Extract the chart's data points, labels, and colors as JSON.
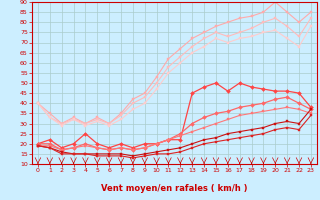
{
  "xlabel": "Vent moyen/en rafales ( km/h )",
  "bg_color": "#cceeff",
  "grid_color": "#aacccc",
  "xlim": [
    -0.5,
    23.5
  ],
  "ylim": [
    10,
    90
  ],
  "yticks": [
    10,
    15,
    20,
    25,
    30,
    35,
    40,
    45,
    50,
    55,
    60,
    65,
    70,
    75,
    80,
    85,
    90
  ],
  "xticks": [
    0,
    1,
    2,
    3,
    4,
    5,
    6,
    7,
    8,
    9,
    10,
    11,
    12,
    13,
    14,
    15,
    16,
    17,
    18,
    19,
    20,
    21,
    22,
    23
  ],
  "series": [
    {
      "color": "#ffaaaa",
      "lw": 0.8,
      "marker": "s",
      "ms": 2,
      "data": [
        [
          0,
          40
        ],
        [
          1,
          35
        ],
        [
          2,
          30
        ],
        [
          3,
          33
        ],
        [
          4,
          30
        ],
        [
          5,
          33
        ],
        [
          6,
          30
        ],
        [
          7,
          35
        ],
        [
          8,
          42
        ],
        [
          9,
          45
        ],
        [
          10,
          53
        ],
        [
          11,
          62
        ],
        [
          12,
          67
        ],
        [
          13,
          72
        ],
        [
          14,
          75
        ],
        [
          15,
          78
        ],
        [
          16,
          80
        ],
        [
          17,
          82
        ],
        [
          18,
          83
        ],
        [
          19,
          85
        ],
        [
          20,
          90
        ],
        [
          21,
          85
        ],
        [
          22,
          80
        ],
        [
          23,
          85
        ]
      ]
    },
    {
      "color": "#ffbbbb",
      "lw": 0.8,
      "marker": "s",
      "ms": 2,
      "data": [
        [
          0,
          40
        ],
        [
          1,
          33
        ],
        [
          2,
          30
        ],
        [
          3,
          32
        ],
        [
          4,
          30
        ],
        [
          5,
          32
        ],
        [
          6,
          30
        ],
        [
          7,
          34
        ],
        [
          8,
          40
        ],
        [
          9,
          43
        ],
        [
          10,
          50
        ],
        [
          11,
          58
        ],
        [
          12,
          63
        ],
        [
          13,
          68
        ],
        [
          14,
          72
        ],
        [
          15,
          75
        ],
        [
          16,
          73
        ],
        [
          17,
          75
        ],
        [
          18,
          77
        ],
        [
          19,
          80
        ],
        [
          20,
          82
        ],
        [
          21,
          78
        ],
        [
          22,
          73
        ],
        [
          23,
          82
        ]
      ]
    },
    {
      "color": "#ffcccc",
      "lw": 0.8,
      "marker": "s",
      "ms": 2,
      "data": [
        [
          0,
          40
        ],
        [
          1,
          33
        ],
        [
          2,
          29
        ],
        [
          3,
          32
        ],
        [
          4,
          29
        ],
        [
          5,
          31
        ],
        [
          6,
          29
        ],
        [
          7,
          32
        ],
        [
          8,
          37
        ],
        [
          9,
          40
        ],
        [
          10,
          47
        ],
        [
          11,
          55
        ],
        [
          12,
          60
        ],
        [
          13,
          65
        ],
        [
          14,
          68
        ],
        [
          15,
          72
        ],
        [
          16,
          70
        ],
        [
          17,
          72
        ],
        [
          18,
          73
        ],
        [
          19,
          75
        ],
        [
          20,
          76
        ],
        [
          21,
          72
        ],
        [
          22,
          68
        ],
        [
          23,
          78
        ]
      ]
    },
    {
      "color": "#ff4444",
      "lw": 0.9,
      "marker": "D",
      "ms": 2,
      "data": [
        [
          0,
          20
        ],
        [
          1,
          22
        ],
        [
          2,
          18
        ],
        [
          3,
          20
        ],
        [
          4,
          25
        ],
        [
          5,
          20
        ],
        [
          6,
          18
        ],
        [
          7,
          20
        ],
        [
          8,
          18
        ],
        [
          9,
          20
        ],
        [
          10,
          20
        ],
        [
          11,
          22
        ],
        [
          12,
          22
        ],
        [
          13,
          45
        ],
        [
          14,
          48
        ],
        [
          15,
          50
        ],
        [
          16,
          46
        ],
        [
          17,
          50
        ],
        [
          18,
          48
        ],
        [
          19,
          47
        ],
        [
          20,
          46
        ],
        [
          21,
          46
        ],
        [
          22,
          45
        ],
        [
          23,
          38
        ]
      ]
    },
    {
      "color": "#ff6666",
      "lw": 0.9,
      "marker": "D",
      "ms": 2,
      "data": [
        [
          0,
          20
        ],
        [
          1,
          20
        ],
        [
          2,
          17
        ],
        [
          3,
          18
        ],
        [
          4,
          20
        ],
        [
          5,
          18
        ],
        [
          6,
          17
        ],
        [
          7,
          18
        ],
        [
          8,
          17
        ],
        [
          9,
          18
        ],
        [
          10,
          20
        ],
        [
          11,
          22
        ],
        [
          12,
          25
        ],
        [
          13,
          30
        ],
        [
          14,
          33
        ],
        [
          15,
          35
        ],
        [
          16,
          36
        ],
        [
          17,
          38
        ],
        [
          18,
          39
        ],
        [
          19,
          40
        ],
        [
          20,
          42
        ],
        [
          21,
          43
        ],
        [
          22,
          40
        ],
        [
          23,
          37
        ]
      ]
    },
    {
      "color": "#ff7777",
      "lw": 0.8,
      "marker": "s",
      "ms": 2,
      "data": [
        [
          0,
          19
        ],
        [
          1,
          19
        ],
        [
          2,
          17
        ],
        [
          3,
          18
        ],
        [
          4,
          19
        ],
        [
          5,
          18
        ],
        [
          6,
          17
        ],
        [
          7,
          18
        ],
        [
          8,
          17
        ],
        [
          9,
          18
        ],
        [
          10,
          20
        ],
        [
          11,
          22
        ],
        [
          12,
          24
        ],
        [
          13,
          26
        ],
        [
          14,
          28
        ],
        [
          15,
          30
        ],
        [
          16,
          32
        ],
        [
          17,
          34
        ],
        [
          18,
          35
        ],
        [
          19,
          36
        ],
        [
          20,
          37
        ],
        [
          21,
          38
        ],
        [
          22,
          37
        ],
        [
          23,
          35
        ]
      ]
    },
    {
      "color": "#cc1111",
      "lw": 0.8,
      "marker": "s",
      "ms": 2,
      "data": [
        [
          0,
          19
        ],
        [
          1,
          18
        ],
        [
          2,
          16
        ],
        [
          3,
          15
        ],
        [
          4,
          15
        ],
        [
          5,
          15
        ],
        [
          6,
          15
        ],
        [
          7,
          15
        ],
        [
          8,
          14
        ],
        [
          9,
          15
        ],
        [
          10,
          16
        ],
        [
          11,
          17
        ],
        [
          12,
          18
        ],
        [
          13,
          20
        ],
        [
          14,
          22
        ],
        [
          15,
          23
        ],
        [
          16,
          25
        ],
        [
          17,
          26
        ],
        [
          18,
          27
        ],
        [
          19,
          28
        ],
        [
          20,
          30
        ],
        [
          21,
          31
        ],
        [
          22,
          30
        ],
        [
          23,
          37
        ]
      ]
    },
    {
      "color": "#dd2222",
      "lw": 0.8,
      "marker": "s",
      "ms": 2,
      "data": [
        [
          0,
          19
        ],
        [
          1,
          18
        ],
        [
          2,
          15
        ],
        [
          3,
          15
        ],
        [
          4,
          15
        ],
        [
          5,
          14
        ],
        [
          6,
          14
        ],
        [
          7,
          14
        ],
        [
          8,
          13
        ],
        [
          9,
          14
        ],
        [
          10,
          15
        ],
        [
          11,
          15
        ],
        [
          12,
          16
        ],
        [
          13,
          18
        ],
        [
          14,
          20
        ],
        [
          15,
          21
        ],
        [
          16,
          22
        ],
        [
          17,
          23
        ],
        [
          18,
          24
        ],
        [
          19,
          25
        ],
        [
          20,
          27
        ],
        [
          21,
          28
        ],
        [
          22,
          27
        ],
        [
          23,
          34
        ]
      ]
    }
  ],
  "arrow_color": "#cc0000",
  "axis_color": "#cc0000",
  "tick_color": "#cc0000",
  "label_color": "#cc0000",
  "xlabel_fontsize": 6,
  "ytick_fontsize": 4.5,
  "xtick_fontsize": 4.5
}
